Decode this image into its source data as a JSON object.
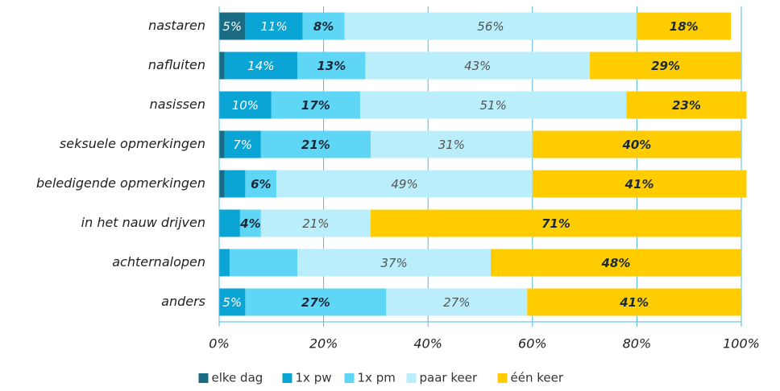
{
  "chart_data": {
    "type": "stacked-barh",
    "categories": [
      "nastaren",
      "nafluiten",
      "nasissen",
      "seksuele opmerkingen",
      "beledigende opmerkingen",
      "in het nauw drijven",
      "achternalopen",
      "anders"
    ],
    "series": [
      {
        "name": "elke dag",
        "color": "#1b6b82",
        "values": [
          5,
          1,
          0,
          1,
          1,
          0,
          0,
          0
        ],
        "value_labels": [
          "5%",
          null,
          null,
          null,
          null,
          null,
          null,
          null
        ]
      },
      {
        "name": "1x pw",
        "color": "#0ba5d5",
        "values": [
          11,
          14,
          10,
          7,
          4,
          4,
          2,
          5
        ],
        "value_labels": [
          "11%",
          "14%",
          "10%",
          "7%",
          null,
          null,
          null,
          "5%"
        ]
      },
      {
        "name": "1x pm",
        "color": "#5fd6f5",
        "values": [
          8,
          13,
          17,
          21,
          6,
          4,
          13,
          27
        ],
        "value_labels": [
          "8%",
          "13%",
          "17%",
          "21%",
          "6%",
          "4%",
          null,
          "27%"
        ]
      },
      {
        "name": "paar keer",
        "color": "#baeefb",
        "values": [
          56,
          43,
          51,
          31,
          49,
          21,
          37,
          27
        ],
        "value_labels": [
          "56%",
          "43%",
          "51%",
          "31%",
          "49%",
          "21%",
          "37%",
          "27%"
        ]
      },
      {
        "name": "één keer",
        "color": "#ffcc00",
        "values": [
          18,
          29,
          23,
          40,
          41,
          71,
          48,
          41
        ],
        "value_labels": [
          "18%",
          "29%",
          "23%",
          "40%",
          "41%",
          "71%",
          "48%",
          "41%"
        ]
      }
    ],
    "xlim": [
      0,
      100
    ],
    "xticks": [
      {
        "value": 0,
        "label": "0%"
      },
      {
        "value": 20,
        "label": "20%"
      },
      {
        "value": 40,
        "label": "40%"
      },
      {
        "value": 60,
        "label": "60%"
      },
      {
        "value": 80,
        "label": "80%"
      },
      {
        "value": 100,
        "label": "100%"
      }
    ],
    "grid": true,
    "legend": "bottom"
  }
}
